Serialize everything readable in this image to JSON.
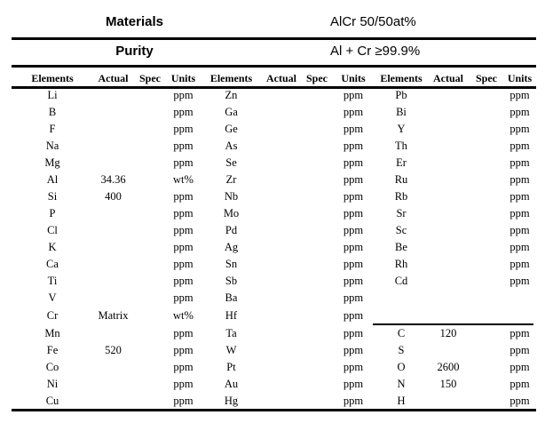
{
  "title_rows": {
    "materials_label": "Materials",
    "materials_value": "AlCr 50/50at%",
    "purity_label": "Purity",
    "purity_value": "Al + Cr ≥99.9%"
  },
  "table": {
    "column_headers": [
      "Elements",
      "Actual",
      "Spec",
      "Units",
      "Elements",
      "Actual",
      "Spec",
      "Units",
      "Elements",
      "Actual",
      "Spec",
      "Units"
    ],
    "group3_separator_above_row_index": 14,
    "rows": [
      [
        "Li",
        "",
        "",
        "ppm",
        "Zn",
        "",
        "",
        "ppm",
        "Pb",
        "",
        "",
        "ppm"
      ],
      [
        "B",
        "",
        "",
        "ppm",
        "Ga",
        "",
        "",
        "ppm",
        "Bi",
        "",
        "",
        "ppm"
      ],
      [
        "F",
        "",
        "",
        "ppm",
        "Ge",
        "",
        "",
        "ppm",
        "Y",
        "",
        "",
        "ppm"
      ],
      [
        "Na",
        "",
        "",
        "ppm",
        "As",
        "",
        "",
        "ppm",
        "Th",
        "",
        "",
        "ppm"
      ],
      [
        "Mg",
        "",
        "",
        "ppm",
        "Se",
        "",
        "",
        "ppm",
        "Er",
        "",
        "",
        "ppm"
      ],
      [
        "Al",
        "34.36",
        "",
        "wt%",
        "Zr",
        "",
        "",
        "ppm",
        "Ru",
        "",
        "",
        "ppm"
      ],
      [
        "Si",
        "400",
        "",
        "ppm",
        "Nb",
        "",
        "",
        "ppm",
        "Rb",
        "",
        "",
        "ppm"
      ],
      [
        "P",
        "",
        "",
        "ppm",
        "Mo",
        "",
        "",
        "ppm",
        "Sr",
        "",
        "",
        "ppm"
      ],
      [
        "Cl",
        "",
        "",
        "ppm",
        "Pd",
        "",
        "",
        "ppm",
        "Sc",
        "",
        "",
        "ppm"
      ],
      [
        "K",
        "",
        "",
        "ppm",
        "Ag",
        "",
        "",
        "ppm",
        "Be",
        "",
        "",
        "ppm"
      ],
      [
        "Ca",
        "",
        "",
        "ppm",
        "Sn",
        "",
        "",
        "ppm",
        "Rh",
        "",
        "",
        "ppm"
      ],
      [
        "Ti",
        "",
        "",
        "ppm",
        "Sb",
        "",
        "",
        "ppm",
        "Cd",
        "",
        "",
        "ppm"
      ],
      [
        "V",
        "",
        "",
        "ppm",
        "Ba",
        "",
        "",
        "ppm",
        "",
        "",
        "",
        ""
      ],
      [
        "Cr",
        "Matrix",
        "",
        "wt%",
        "Hf",
        "",
        "",
        "ppm",
        "",
        "",
        "",
        ""
      ],
      [
        "Mn",
        "",
        "",
        "ppm",
        "Ta",
        "",
        "",
        "ppm",
        "C",
        "120",
        "",
        "ppm"
      ],
      [
        "Fe",
        "520",
        "",
        "ppm",
        "W",
        "",
        "",
        "ppm",
        "S",
        "",
        "",
        "ppm"
      ],
      [
        "Co",
        "",
        "",
        "ppm",
        "Pt",
        "",
        "",
        "ppm",
        "O",
        "2600",
        "",
        "ppm"
      ],
      [
        "Ni",
        "",
        "",
        "ppm",
        "Au",
        "",
        "",
        "ppm",
        "N",
        "150",
        "",
        "ppm"
      ],
      [
        "Cu",
        "",
        "",
        "ppm",
        "Hg",
        "",
        "",
        "ppm",
        "H",
        "",
        "",
        "ppm"
      ]
    ]
  }
}
